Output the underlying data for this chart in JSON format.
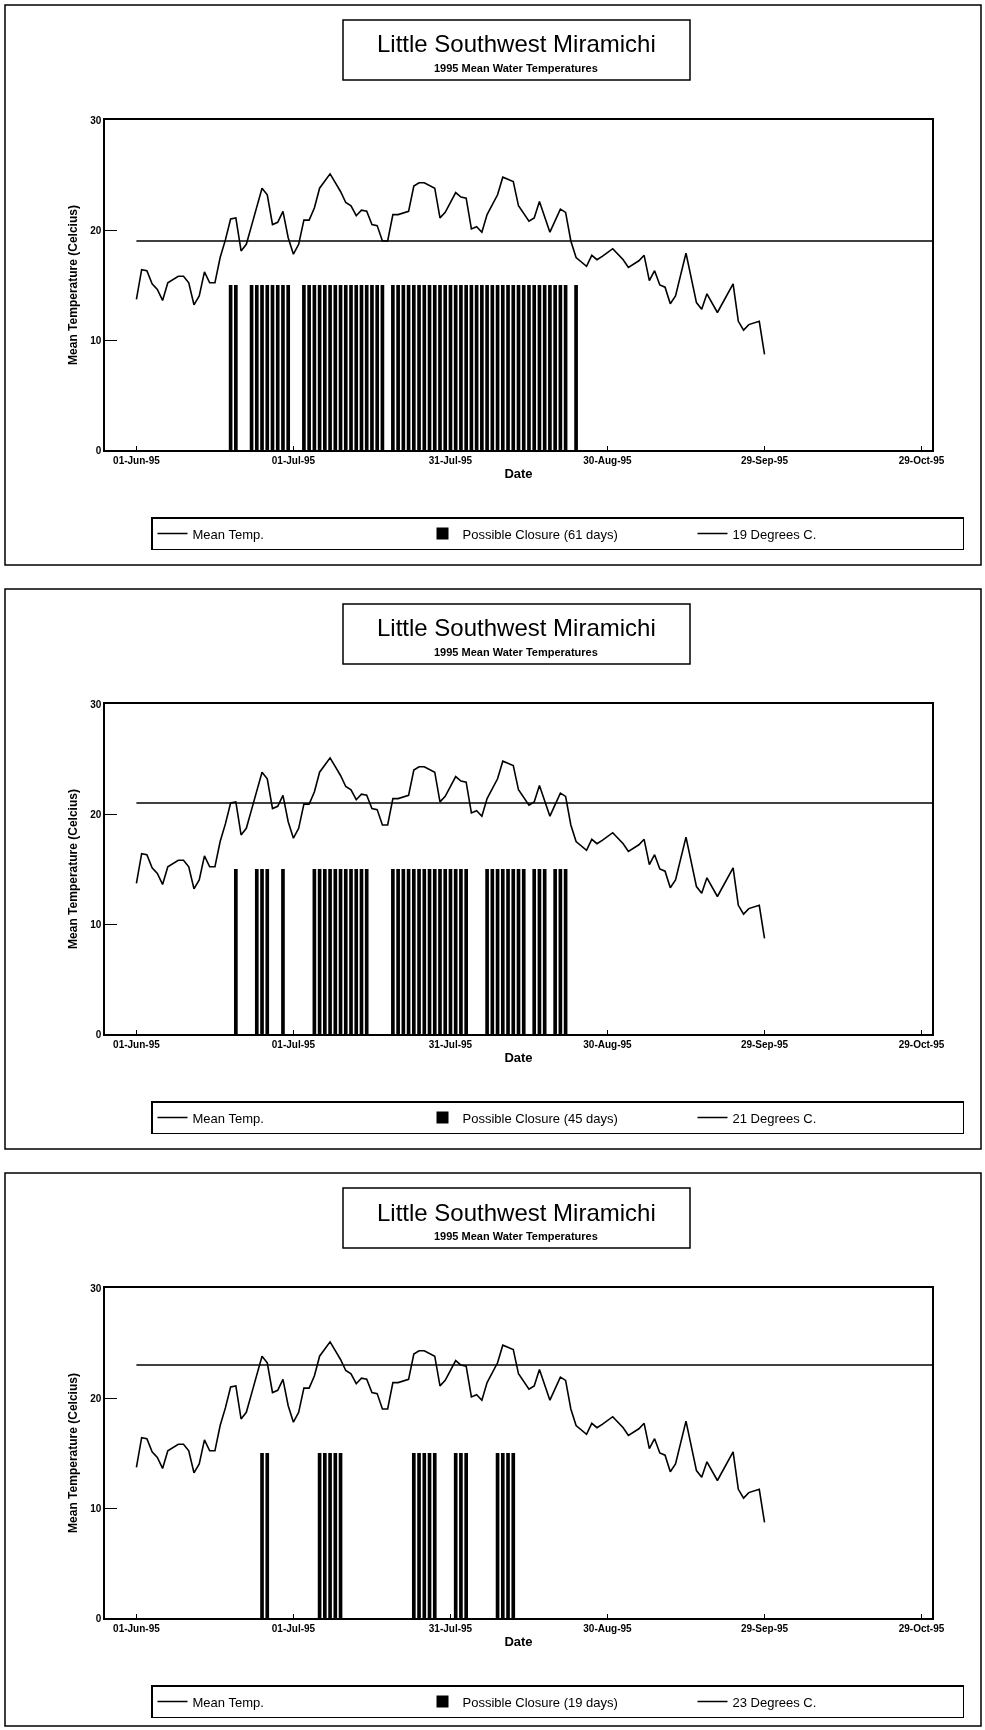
{
  "chart_data": [
    {
      "type": "line",
      "title": "Little Southwest Miramichi",
      "subtitle": "1995 Mean Water Temperatures",
      "xlabel": "Date",
      "ylabel": "Mean Temperature (Celcius)",
      "xlim": [
        "1995-05-26",
        "1995-10-31"
      ],
      "xticks": [
        {
          "value": "1995-06-01",
          "label": "01-Jun-95"
        },
        {
          "value": "1995-07-01",
          "label": "01-Jul-95"
        },
        {
          "value": "1995-07-31",
          "label": "31-Jul-95"
        },
        {
          "value": "1995-08-30",
          "label": "30-Aug-95"
        },
        {
          "value": "1995-09-29",
          "label": "29-Sep-95"
        },
        {
          "value": "1995-10-29",
          "label": "29-Oct-95"
        }
      ],
      "ylim": [
        0,
        30
      ],
      "yticks": [
        0,
        10,
        20,
        30
      ],
      "legend": "bottom",
      "series": [
        {
          "name": "Mean Temp.",
          "color": "#000000",
          "x": [
            "1995-06-01",
            "1995-06-02",
            "1995-06-03",
            "1995-06-04",
            "1995-06-05",
            "1995-06-06",
            "1995-06-07",
            "1995-06-09",
            "1995-06-10",
            "1995-06-11",
            "1995-06-12",
            "1995-06-13",
            "1995-06-14",
            "1995-06-15",
            "1995-06-16",
            "1995-06-17",
            "1995-06-18",
            "1995-06-19",
            "1995-06-20",
            "1995-06-21",
            "1995-06-22",
            "1995-06-23",
            "1995-06-25",
            "1995-06-26",
            "1995-06-27",
            "1995-06-28",
            "1995-06-29",
            "1995-06-30",
            "1995-07-01",
            "1995-07-02",
            "1995-07-03",
            "1995-07-04",
            "1995-07-05",
            "1995-07-06",
            "1995-07-08",
            "1995-07-09",
            "1995-07-10",
            "1995-07-11",
            "1995-07-12",
            "1995-07-13",
            "1995-07-14",
            "1995-07-15",
            "1995-07-16",
            "1995-07-17",
            "1995-07-18",
            "1995-07-19",
            "1995-07-20",
            "1995-07-21",
            "1995-07-23",
            "1995-07-24",
            "1995-07-25",
            "1995-07-26",
            "1995-07-28",
            "1995-07-29",
            "1995-07-30",
            "1995-08-01",
            "1995-08-02",
            "1995-08-03",
            "1995-08-04",
            "1995-08-05",
            "1995-08-06",
            "1995-08-07",
            "1995-08-09",
            "1995-08-10",
            "1995-08-12",
            "1995-08-13",
            "1995-08-15",
            "1995-08-16",
            "1995-08-17",
            "1995-08-19",
            "1995-08-21",
            "1995-08-22",
            "1995-08-23",
            "1995-08-24",
            "1995-08-26",
            "1995-08-27",
            "1995-08-28",
            "1995-08-29",
            "1995-08-31",
            "1995-09-02",
            "1995-09-03",
            "1995-09-05",
            "1995-09-06",
            "1995-09-07",
            "1995-09-08",
            "1995-09-09",
            "1995-09-10",
            "1995-09-11",
            "1995-09-12",
            "1995-09-14",
            "1995-09-16",
            "1995-09-17",
            "1995-09-18",
            "1995-09-20",
            "1995-09-23",
            "1995-09-24",
            "1995-09-25",
            "1995-09-26",
            "1995-09-28",
            "1995-09-29"
          ],
          "values": [
            13.7,
            16.4,
            16.3,
            15.1,
            14.6,
            13.6,
            15.2,
            15.8,
            15.8,
            15.2,
            13.2,
            14.0,
            16.2,
            15.2,
            15.2,
            17.5,
            19.1,
            21.0,
            21.1,
            18.1,
            18.7,
            20.4,
            23.8,
            23.2,
            20.5,
            20.7,
            21.7,
            19.3,
            17.8,
            18.7,
            20.9,
            20.9,
            22.0,
            23.8,
            25.1,
            24.3,
            23.5,
            22.5,
            22.2,
            21.3,
            21.8,
            21.7,
            20.5,
            20.4,
            19.0,
            19.0,
            21.4,
            21.4,
            21.7,
            24.0,
            24.3,
            24.3,
            23.8,
            21.1,
            21.6,
            23.4,
            23.0,
            22.9,
            20.1,
            20.3,
            19.8,
            21.4,
            23.2,
            24.8,
            24.4,
            22.2,
            20.8,
            21.1,
            22.6,
            19.8,
            21.9,
            21.6,
            19.0,
            17.5,
            16.7,
            17.7,
            17.3,
            17.6,
            18.3,
            17.3,
            16.6,
            17.2,
            17.7,
            15.4,
            16.3,
            15.0,
            14.8,
            13.3,
            14.0,
            17.9,
            13.4,
            12.8,
            14.2,
            12.5,
            15.1,
            11.7,
            10.9,
            11.4,
            11.7,
            8.7
          ]
        },
        {
          "name": "Possible Closure (61 days)",
          "type": "bar",
          "color": "#000000",
          "x": [
            "1995-06-19",
            "1995-06-20",
            "1995-06-23",
            "1995-06-24",
            "1995-06-25",
            "1995-06-26",
            "1995-06-27",
            "1995-06-28",
            "1995-06-29",
            "1995-06-30",
            "1995-07-03",
            "1995-07-04",
            "1995-07-05",
            "1995-07-06",
            "1995-07-07",
            "1995-07-08",
            "1995-07-09",
            "1995-07-10",
            "1995-07-11",
            "1995-07-12",
            "1995-07-13",
            "1995-07-14",
            "1995-07-15",
            "1995-07-16",
            "1995-07-17",
            "1995-07-18",
            "1995-07-20",
            "1995-07-21",
            "1995-07-22",
            "1995-07-23",
            "1995-07-24",
            "1995-07-25",
            "1995-07-26",
            "1995-07-27",
            "1995-07-28",
            "1995-07-29",
            "1995-07-30",
            "1995-07-31",
            "1995-08-01",
            "1995-08-02",
            "1995-08-03",
            "1995-08-04",
            "1995-08-05",
            "1995-08-06",
            "1995-08-07",
            "1995-08-08",
            "1995-08-09",
            "1995-08-10",
            "1995-08-11",
            "1995-08-12",
            "1995-08-13",
            "1995-08-14",
            "1995-08-15",
            "1995-08-16",
            "1995-08-17",
            "1995-08-18",
            "1995-08-19",
            "1995-08-20",
            "1995-08-21",
            "1995-08-22",
            "1995-08-24"
          ],
          "values": [
            15,
            15,
            15,
            15,
            15,
            15,
            15,
            15,
            15,
            15,
            15,
            15,
            15,
            15,
            15,
            15,
            15,
            15,
            15,
            15,
            15,
            15,
            15,
            15,
            15,
            15,
            15,
            15,
            15,
            15,
            15,
            15,
            15,
            15,
            15,
            15,
            15,
            15,
            15,
            15,
            15,
            15,
            15,
            15,
            15,
            15,
            15,
            15,
            15,
            15,
            15,
            15,
            15,
            15,
            15,
            15,
            15,
            15,
            15,
            15,
            15
          ]
        }
      ],
      "ref_lines": [
        {
          "axis": "y",
          "value": 19,
          "label": "19 Degrees C.",
          "color": "#000000"
        }
      ]
    },
    {
      "type": "line",
      "title": "Little Southwest Miramichi",
      "subtitle": "1995 Mean Water Temperatures",
      "xlabel": "Date",
      "ylabel": "Mean Temperature (Celcius)",
      "xlim": [
        "1995-05-26",
        "1995-10-31"
      ],
      "xticks": [
        {
          "value": "1995-06-01",
          "label": "01-Jun-95"
        },
        {
          "value": "1995-07-01",
          "label": "01-Jul-95"
        },
        {
          "value": "1995-07-31",
          "label": "31-Jul-95"
        },
        {
          "value": "1995-08-30",
          "label": "30-Aug-95"
        },
        {
          "value": "1995-09-29",
          "label": "29-Sep-95"
        },
        {
          "value": "1995-10-29",
          "label": "29-Oct-95"
        }
      ],
      "ylim": [
        0,
        30
      ],
      "yticks": [
        0,
        10,
        20,
        30
      ],
      "legend": "bottom",
      "series": [
        {
          "name": "Mean Temp.",
          "color": "#000000",
          "x": [
            "1995-06-01",
            "1995-06-02",
            "1995-06-03",
            "1995-06-04",
            "1995-06-05",
            "1995-06-06",
            "1995-06-07",
            "1995-06-09",
            "1995-06-10",
            "1995-06-11",
            "1995-06-12",
            "1995-06-13",
            "1995-06-14",
            "1995-06-15",
            "1995-06-16",
            "1995-06-17",
            "1995-06-18",
            "1995-06-19",
            "1995-06-20",
            "1995-06-21",
            "1995-06-22",
            "1995-06-23",
            "1995-06-25",
            "1995-06-26",
            "1995-06-27",
            "1995-06-28",
            "1995-06-29",
            "1995-06-30",
            "1995-07-01",
            "1995-07-02",
            "1995-07-03",
            "1995-07-04",
            "1995-07-05",
            "1995-07-06",
            "1995-07-08",
            "1995-07-09",
            "1995-07-10",
            "1995-07-11",
            "1995-07-12",
            "1995-07-13",
            "1995-07-14",
            "1995-07-15",
            "1995-07-16",
            "1995-07-17",
            "1995-07-18",
            "1995-07-19",
            "1995-07-20",
            "1995-07-21",
            "1995-07-23",
            "1995-07-24",
            "1995-07-25",
            "1995-07-26",
            "1995-07-28",
            "1995-07-29",
            "1995-07-30",
            "1995-08-01",
            "1995-08-02",
            "1995-08-03",
            "1995-08-04",
            "1995-08-05",
            "1995-08-06",
            "1995-08-07",
            "1995-08-09",
            "1995-08-10",
            "1995-08-12",
            "1995-08-13",
            "1995-08-15",
            "1995-08-16",
            "1995-08-17",
            "1995-08-19",
            "1995-08-21",
            "1995-08-22",
            "1995-08-23",
            "1995-08-24",
            "1995-08-26",
            "1995-08-27",
            "1995-08-28",
            "1995-08-29",
            "1995-08-31",
            "1995-09-02",
            "1995-09-03",
            "1995-09-05",
            "1995-09-06",
            "1995-09-07",
            "1995-09-08",
            "1995-09-09",
            "1995-09-10",
            "1995-09-11",
            "1995-09-12",
            "1995-09-14",
            "1995-09-16",
            "1995-09-17",
            "1995-09-18",
            "1995-09-20",
            "1995-09-23",
            "1995-09-24",
            "1995-09-25",
            "1995-09-26",
            "1995-09-28",
            "1995-09-29"
          ],
          "values": [
            13.7,
            16.4,
            16.3,
            15.1,
            14.6,
            13.6,
            15.2,
            15.8,
            15.8,
            15.2,
            13.2,
            14.0,
            16.2,
            15.2,
            15.2,
            17.5,
            19.1,
            21.0,
            21.1,
            18.1,
            18.7,
            20.4,
            23.8,
            23.2,
            20.5,
            20.7,
            21.7,
            19.3,
            17.8,
            18.7,
            20.9,
            20.9,
            22.0,
            23.8,
            25.1,
            24.3,
            23.5,
            22.5,
            22.2,
            21.3,
            21.8,
            21.7,
            20.5,
            20.4,
            19.0,
            19.0,
            21.4,
            21.4,
            21.7,
            24.0,
            24.3,
            24.3,
            23.8,
            21.1,
            21.6,
            23.4,
            23.0,
            22.9,
            20.1,
            20.3,
            19.8,
            21.4,
            23.2,
            24.8,
            24.4,
            22.2,
            20.8,
            21.1,
            22.6,
            19.8,
            21.9,
            21.6,
            19.0,
            17.5,
            16.7,
            17.7,
            17.3,
            17.6,
            18.3,
            17.3,
            16.6,
            17.2,
            17.7,
            15.4,
            16.3,
            15.0,
            14.8,
            13.3,
            14.0,
            17.9,
            13.4,
            12.8,
            14.2,
            12.5,
            15.1,
            11.7,
            10.9,
            11.4,
            11.7,
            8.7
          ]
        },
        {
          "name": "Possible Closure (45 days)",
          "type": "bar",
          "color": "#000000",
          "x": [
            "1995-06-20",
            "1995-06-24",
            "1995-06-25",
            "1995-06-26",
            "1995-06-29",
            "1995-07-05",
            "1995-07-06",
            "1995-07-07",
            "1995-07-08",
            "1995-07-09",
            "1995-07-10",
            "1995-07-11",
            "1995-07-12",
            "1995-07-13",
            "1995-07-14",
            "1995-07-15",
            "1995-07-20",
            "1995-07-21",
            "1995-07-22",
            "1995-07-23",
            "1995-07-24",
            "1995-07-25",
            "1995-07-26",
            "1995-07-27",
            "1995-07-28",
            "1995-07-29",
            "1995-07-30",
            "1995-07-31",
            "1995-08-01",
            "1995-08-02",
            "1995-08-03",
            "1995-08-07",
            "1995-08-08",
            "1995-08-09",
            "1995-08-10",
            "1995-08-11",
            "1995-08-12",
            "1995-08-13",
            "1995-08-14",
            "1995-08-16",
            "1995-08-17",
            "1995-08-18",
            "1995-08-20",
            "1995-08-21",
            "1995-08-22"
          ],
          "values": [
            15,
            15,
            15,
            15,
            15,
            15,
            15,
            15,
            15,
            15,
            15,
            15,
            15,
            15,
            15,
            15,
            15,
            15,
            15,
            15,
            15,
            15,
            15,
            15,
            15,
            15,
            15,
            15,
            15,
            15,
            15,
            15,
            15,
            15,
            15,
            15,
            15,
            15,
            15,
            15,
            15,
            15,
            15,
            15,
            15
          ]
        }
      ],
      "ref_lines": [
        {
          "axis": "y",
          "value": 21,
          "label": "21 Degrees C.",
          "color": "#000000"
        }
      ]
    },
    {
      "type": "line",
      "title": "Little Southwest Miramichi",
      "subtitle": "1995 Mean Water Temperatures",
      "xlabel": "Date",
      "ylabel": "Mean Temperature (Celcius)",
      "xlim": [
        "1995-05-26",
        "1995-10-31"
      ],
      "xticks": [
        {
          "value": "1995-06-01",
          "label": "01-Jun-95"
        },
        {
          "value": "1995-07-01",
          "label": "01-Jul-95"
        },
        {
          "value": "1995-07-31",
          "label": "31-Jul-95"
        },
        {
          "value": "1995-08-30",
          "label": "30-Aug-95"
        },
        {
          "value": "1995-09-29",
          "label": "29-Sep-95"
        },
        {
          "value": "1995-10-29",
          "label": "29-Oct-95"
        }
      ],
      "ylim": [
        0,
        30
      ],
      "yticks": [
        0,
        10,
        20,
        30
      ],
      "legend": "bottom",
      "series": [
        {
          "name": "Mean Temp.",
          "color": "#000000",
          "x": [
            "1995-06-01",
            "1995-06-02",
            "1995-06-03",
            "1995-06-04",
            "1995-06-05",
            "1995-06-06",
            "1995-06-07",
            "1995-06-09",
            "1995-06-10",
            "1995-06-11",
            "1995-06-12",
            "1995-06-13",
            "1995-06-14",
            "1995-06-15",
            "1995-06-16",
            "1995-06-17",
            "1995-06-18",
            "1995-06-19",
            "1995-06-20",
            "1995-06-21",
            "1995-06-22",
            "1995-06-23",
            "1995-06-25",
            "1995-06-26",
            "1995-06-27",
            "1995-06-28",
            "1995-06-29",
            "1995-06-30",
            "1995-07-01",
            "1995-07-02",
            "1995-07-03",
            "1995-07-04",
            "1995-07-05",
            "1995-07-06",
            "1995-07-08",
            "1995-07-09",
            "1995-07-10",
            "1995-07-11",
            "1995-07-12",
            "1995-07-13",
            "1995-07-14",
            "1995-07-15",
            "1995-07-16",
            "1995-07-17",
            "1995-07-18",
            "1995-07-19",
            "1995-07-20",
            "1995-07-21",
            "1995-07-23",
            "1995-07-24",
            "1995-07-25",
            "1995-07-26",
            "1995-07-28",
            "1995-07-29",
            "1995-07-30",
            "1995-08-01",
            "1995-08-02",
            "1995-08-03",
            "1995-08-04",
            "1995-08-05",
            "1995-08-06",
            "1995-08-07",
            "1995-08-09",
            "1995-08-10",
            "1995-08-12",
            "1995-08-13",
            "1995-08-15",
            "1995-08-16",
            "1995-08-17",
            "1995-08-19",
            "1995-08-21",
            "1995-08-22",
            "1995-08-23",
            "1995-08-24",
            "1995-08-26",
            "1995-08-27",
            "1995-08-28",
            "1995-08-29",
            "1995-08-31",
            "1995-09-02",
            "1995-09-03",
            "1995-09-05",
            "1995-09-06",
            "1995-09-07",
            "1995-09-08",
            "1995-09-09",
            "1995-09-10",
            "1995-09-11",
            "1995-09-12",
            "1995-09-14",
            "1995-09-16",
            "1995-09-17",
            "1995-09-18",
            "1995-09-20",
            "1995-09-23",
            "1995-09-24",
            "1995-09-25",
            "1995-09-26",
            "1995-09-28",
            "1995-09-29"
          ],
          "values": [
            13.7,
            16.4,
            16.3,
            15.1,
            14.6,
            13.6,
            15.2,
            15.8,
            15.8,
            15.2,
            13.2,
            14.0,
            16.2,
            15.2,
            15.2,
            17.5,
            19.1,
            21.0,
            21.1,
            18.1,
            18.7,
            20.4,
            23.8,
            23.2,
            20.5,
            20.7,
            21.7,
            19.3,
            17.8,
            18.7,
            20.9,
            20.9,
            22.0,
            23.8,
            25.1,
            24.3,
            23.5,
            22.5,
            22.2,
            21.3,
            21.8,
            21.7,
            20.5,
            20.4,
            19.0,
            19.0,
            21.4,
            21.4,
            21.7,
            24.0,
            24.3,
            24.3,
            23.8,
            21.1,
            21.6,
            23.4,
            23.0,
            22.9,
            20.1,
            20.3,
            19.8,
            21.4,
            23.2,
            24.8,
            24.4,
            22.2,
            20.8,
            21.1,
            22.6,
            19.8,
            21.9,
            21.6,
            19.0,
            17.5,
            16.7,
            17.7,
            17.3,
            17.6,
            18.3,
            17.3,
            16.6,
            17.2,
            17.7,
            15.4,
            16.3,
            15.0,
            14.8,
            13.3,
            14.0,
            17.9,
            13.4,
            12.8,
            14.2,
            12.5,
            15.1,
            11.7,
            10.9,
            11.4,
            11.7,
            8.7
          ]
        },
        {
          "name": "Possible Closure (19 days)",
          "type": "bar",
          "color": "#000000",
          "x": [
            "1995-06-25",
            "1995-06-26",
            "1995-07-06",
            "1995-07-07",
            "1995-07-08",
            "1995-07-09",
            "1995-07-10",
            "1995-07-24",
            "1995-07-25",
            "1995-07-26",
            "1995-07-27",
            "1995-07-28",
            "1995-08-01",
            "1995-08-02",
            "1995-08-03",
            "1995-08-09",
            "1995-08-10",
            "1995-08-11",
            "1995-08-12"
          ],
          "values": [
            15,
            15,
            15,
            15,
            15,
            15,
            15,
            15,
            15,
            15,
            15,
            15,
            15,
            15,
            15,
            15,
            15,
            15,
            15
          ]
        }
      ],
      "ref_lines": [
        {
          "axis": "y",
          "value": 23,
          "label": "23 Degrees C.",
          "color": "#000000"
        }
      ]
    }
  ]
}
